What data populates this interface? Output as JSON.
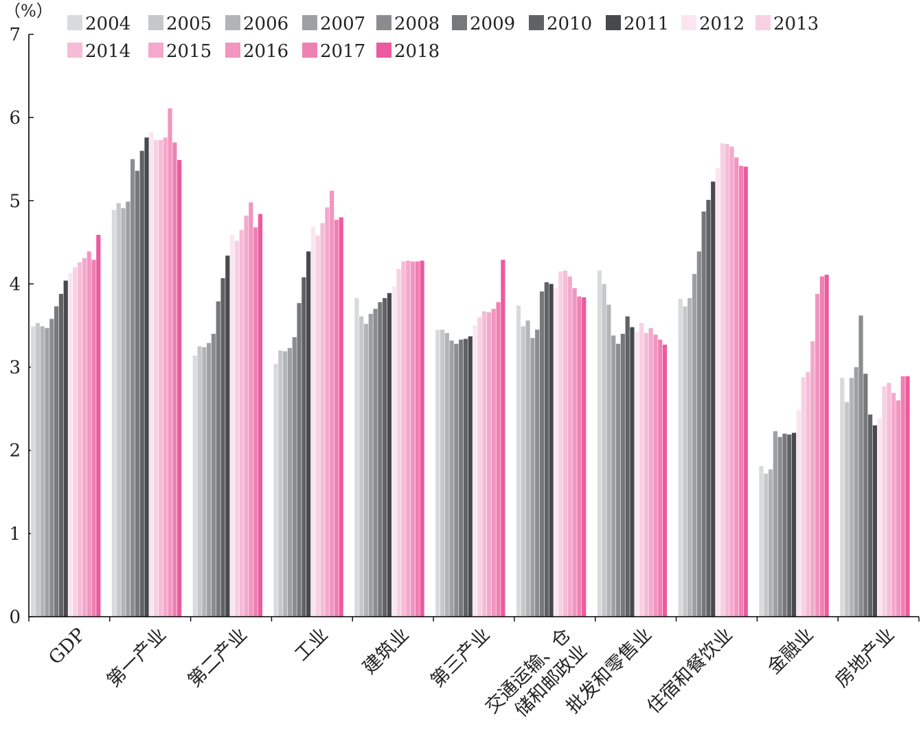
{
  "chart_data": {
    "type": "bar",
    "unit": "（%）",
    "ylim": [
      0,
      7
    ],
    "yticks": [
      "0",
      "1",
      "2",
      "3",
      "4",
      "5",
      "6",
      "7"
    ],
    "legend_position": "top",
    "categories": [
      "GDP",
      "第一产业",
      "第二产业",
      "工业",
      "建筑业",
      "第三产业",
      "交通运输、仓储和邮政业",
      "批发和零售业",
      "住宿和餐饮业",
      "金融业",
      "房地产业"
    ],
    "category_label_lines": [
      [
        "GDP"
      ],
      [
        "第一产业"
      ],
      [
        "第二产业"
      ],
      [
        "工业"
      ],
      [
        "建筑业"
      ],
      [
        "第三产业"
      ],
      [
        "交通运输、仓",
        "储和邮政业"
      ],
      [
        "批发和零售业"
      ],
      [
        "住宿和餐饮业"
      ],
      [
        "金融业"
      ],
      [
        "房地产业"
      ]
    ],
    "series": [
      {
        "name": "2004",
        "color": "#d9dadb",
        "values": [
          3.49,
          4.89,
          3.14,
          3.04,
          3.83,
          3.45,
          3.74,
          4.16,
          3.82,
          1.81,
          2.87
        ]
      },
      {
        "name": "2005",
        "color": "#c6c7c8",
        "values": [
          3.53,
          4.97,
          3.25,
          3.2,
          3.61,
          3.45,
          3.49,
          4.0,
          3.73,
          1.72,
          2.58
        ]
      },
      {
        "name": "2006",
        "color": "#b3b4b6",
        "values": [
          3.49,
          4.91,
          3.24,
          3.19,
          3.52,
          3.41,
          3.56,
          3.75,
          3.83,
          1.77,
          2.87
        ]
      },
      {
        "name": "2007",
        "color": "#9fa0a2",
        "values": [
          3.47,
          4.99,
          3.29,
          3.23,
          3.64,
          3.32,
          3.35,
          3.38,
          4.12,
          2.23,
          3.0
        ]
      },
      {
        "name": "2008",
        "color": "#8b8c8e",
        "values": [
          3.58,
          5.5,
          3.4,
          3.36,
          3.7,
          3.28,
          3.45,
          3.28,
          4.39,
          2.16,
          3.62
        ]
      },
      {
        "name": "2009",
        "color": "#77787a",
        "values": [
          3.73,
          5.36,
          3.79,
          3.77,
          3.78,
          3.33,
          3.91,
          3.4,
          4.87,
          2.2,
          2.92
        ]
      },
      {
        "name": "2010",
        "color": "#616264",
        "values": [
          3.88,
          5.6,
          4.07,
          4.08,
          3.83,
          3.34,
          4.02,
          3.61,
          5.01,
          2.19,
          2.43
        ]
      },
      {
        "name": "2011",
        "color": "#48494b",
        "values": [
          4.04,
          5.76,
          4.34,
          4.39,
          3.89,
          3.37,
          4.0,
          3.48,
          5.23,
          2.21,
          2.3
        ]
      },
      {
        "name": "2012",
        "color": "#fae6ee",
        "values": [
          4.13,
          5.82,
          4.59,
          4.69,
          3.97,
          3.5,
          3.95,
          3.43,
          5.39,
          2.48,
          2.38
        ]
      },
      {
        "name": "2013",
        "color": "#f7d1e2",
        "values": [
          4.2,
          5.73,
          4.52,
          4.58,
          4.18,
          3.6,
          4.15,
          3.53,
          5.69,
          2.88,
          2.77
        ]
      },
      {
        "name": "2014",
        "color": "#f6bcd7",
        "values": [
          4.26,
          5.73,
          4.65,
          4.73,
          4.27,
          3.67,
          4.16,
          3.41,
          5.68,
          2.94,
          2.81
        ]
      },
      {
        "name": "2015",
        "color": "#f4a9cc",
        "values": [
          4.31,
          5.76,
          4.82,
          4.92,
          4.28,
          3.66,
          4.09,
          3.47,
          5.65,
          3.31,
          2.69
        ]
      },
      {
        "name": "2016",
        "color": "#f295c0",
        "values": [
          4.39,
          6.11,
          4.98,
          5.12,
          4.27,
          3.7,
          3.95,
          3.39,
          5.52,
          3.88,
          2.6
        ]
      },
      {
        "name": "2017",
        "color": "#ef80b2",
        "values": [
          4.29,
          5.7,
          4.68,
          4.77,
          4.27,
          3.78,
          3.85,
          3.33,
          5.42,
          4.09,
          2.89
        ]
      },
      {
        "name": "2018",
        "color": "#ec5a9f",
        "values": [
          4.59,
          5.49,
          4.84,
          4.8,
          4.28,
          4.29,
          3.84,
          3.27,
          5.41,
          4.11,
          2.89
        ]
      }
    ]
  }
}
